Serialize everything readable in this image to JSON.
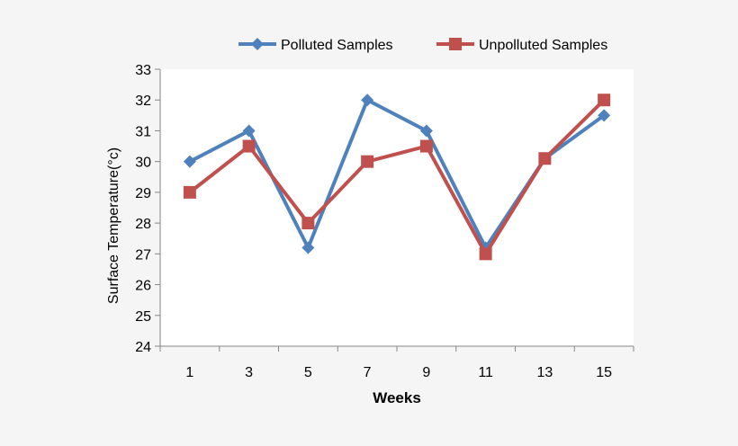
{
  "chart_data": {
    "type": "line",
    "title": "",
    "xlabel": "Weeks",
    "ylabel": "Surface Temperature(°c)",
    "categories": [
      "1",
      "3",
      "5",
      "7",
      "9",
      "11",
      "13",
      "15"
    ],
    "ylim": [
      24,
      33
    ],
    "yticks": [
      "24",
      "25",
      "26",
      "27",
      "28",
      "29",
      "30",
      "31",
      "32",
      "33"
    ],
    "grid": false,
    "legend_position": "top-right",
    "series": [
      {
        "name": "Polluted Samples",
        "marker": "diamond",
        "color": "#4f81bd",
        "values": [
          30,
          31,
          27.2,
          32,
          31,
          27.2,
          30.1,
          31.5
        ]
      },
      {
        "name": "Unpolluted Samples",
        "marker": "square",
        "color": "#c0504d",
        "values": [
          29,
          30.5,
          28,
          30,
          30.5,
          27,
          30.1,
          32
        ]
      }
    ]
  }
}
